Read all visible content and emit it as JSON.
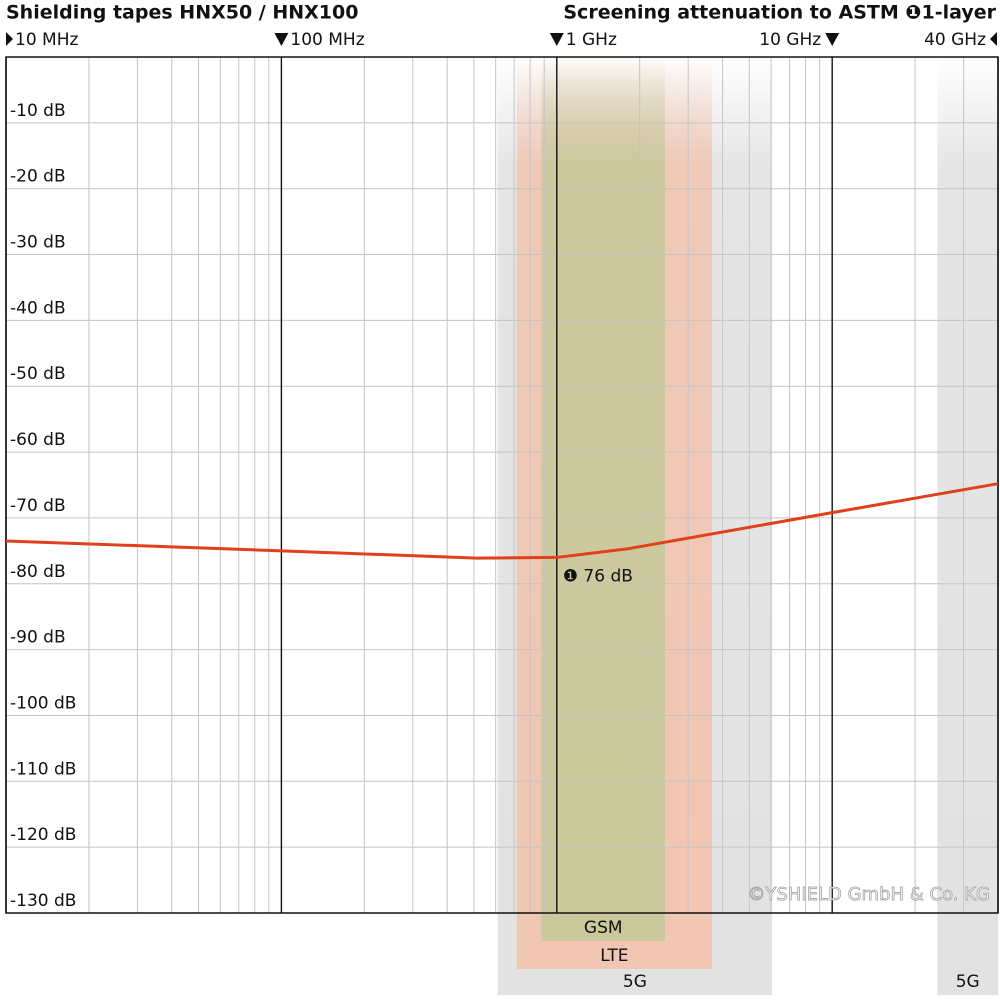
{
  "chart_data": {
    "type": "line",
    "title": "Shielding tapes HNX50 / HNX100",
    "subtitle": "Screening attenuation to ASTM ❶1-layer",
    "x_log_scale": true,
    "xlim": [
      10,
      40000
    ],
    "xticks": [
      {
        "value": 10,
        "label": "10 MHz"
      },
      {
        "value": 100,
        "label": "100 MHz"
      },
      {
        "value": 1000,
        "label": "1 GHz"
      },
      {
        "value": 10000,
        "label": "10 GHz"
      },
      {
        "value": 40000,
        "label": "40 GHz"
      }
    ],
    "minor_xticks": [
      20,
      30,
      40,
      50,
      60,
      70,
      80,
      90,
      200,
      300,
      400,
      500,
      600,
      700,
      800,
      900,
      2000,
      3000,
      4000,
      5000,
      6000,
      7000,
      8000,
      9000,
      20000,
      30000
    ],
    "ylim": [
      -130,
      0
    ],
    "yticks": [
      {
        "value": -10,
        "label": "-10 dB"
      },
      {
        "value": -20,
        "label": "-20 dB"
      },
      {
        "value": -30,
        "label": "-30 dB"
      },
      {
        "value": -40,
        "label": "-40 dB"
      },
      {
        "value": -50,
        "label": "-50 dB"
      },
      {
        "value": -60,
        "label": "-60 dB"
      },
      {
        "value": -70,
        "label": "-70 dB"
      },
      {
        "value": -80,
        "label": "-80 dB"
      },
      {
        "value": -90,
        "label": "-90 dB"
      },
      {
        "value": -100,
        "label": "-100 dB"
      },
      {
        "value": -110,
        "label": "-110 dB"
      },
      {
        "value": -120,
        "label": "-120 dB"
      },
      {
        "value": -130,
        "label": "-130 dB"
      }
    ],
    "grid": true,
    "x": [
      10,
      100,
      513,
      1000,
      1800,
      10000,
      40000
    ],
    "values": [
      -73.5,
      -75,
      -76.1,
      -76,
      -74.7,
      -69.2,
      -64.8
    ],
    "color": "#e0401a",
    "annotation": {
      "text": "❶ 76 dB",
      "x": 1000,
      "y": -76
    },
    "bands": [
      {
        "name": "5G",
        "range": [
          610,
          6050
        ],
        "color": "#e2e2e2",
        "level": 3
      },
      {
        "name": "5G",
        "range": [
          24100,
          40000
        ],
        "color": "#e2e2e2",
        "level": 3
      },
      {
        "name": "LTE",
        "range": [
          716,
          3660
        ],
        "color": "#f1c6b2",
        "level": 2
      },
      {
        "name": "GSM",
        "range": [
          880,
          2470
        ],
        "color": "#c9c99c",
        "level": 1
      }
    ],
    "watermark": "©YSHIELD GmbH & Co. KG"
  }
}
